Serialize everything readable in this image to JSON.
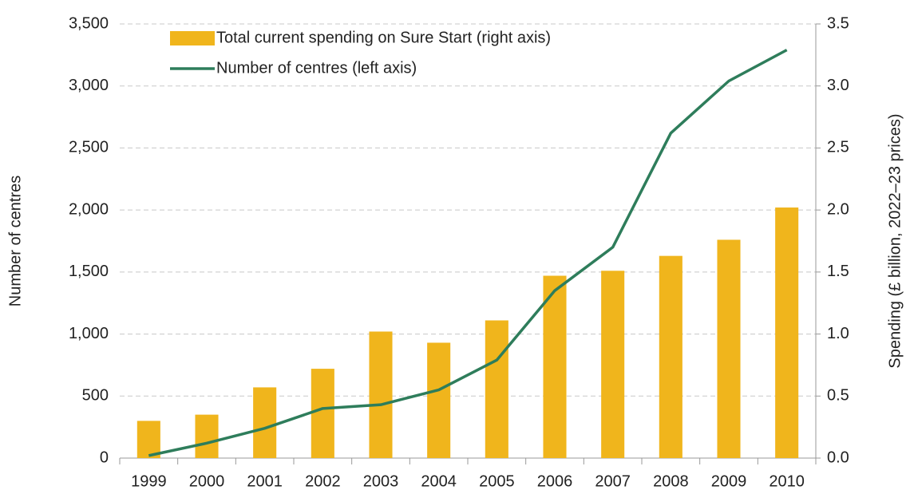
{
  "chart_data": {
    "type": "bar_line",
    "categories": [
      "1999",
      "2000",
      "2001",
      "2002",
      "2003",
      "2004",
      "2005",
      "2006",
      "2007",
      "2008",
      "2009",
      "2010"
    ],
    "series": [
      {
        "name": "Total current spending on Sure Start (right axis)",
        "type": "bar",
        "axis": "y2",
        "color": "#f0b51c",
        "values": [
          0.3,
          0.35,
          0.57,
          0.72,
          1.02,
          0.93,
          1.11,
          1.47,
          1.51,
          1.63,
          1.76,
          2.02
        ]
      },
      {
        "name": "Number of centres (left axis)",
        "type": "line",
        "axis": "y",
        "color": "#2e7d5b",
        "values": [
          20,
          120,
          240,
          400,
          430,
          550,
          790,
          1350,
          1700,
          2620,
          3040,
          3290
        ]
      }
    ],
    "ylabel": "Number of centres",
    "y2label": "Spending (£ billion, 2022–23 prices)",
    "ylim": [
      0,
      3500
    ],
    "yticks": [
      0,
      500,
      {
        "value": 1000,
        "label": "1,000"
      },
      {
        "value": 1500,
        "label": "1,500"
      },
      {
        "value": 2000,
        "label": "2,000"
      },
      {
        "value": 2500,
        "label": "2,500"
      },
      {
        "value": 3000,
        "label": "3,000"
      },
      {
        "value": 3500,
        "label": "3,500"
      }
    ],
    "y2lim": [
      0,
      3.5
    ],
    "y2ticks": [
      {
        "value": 0,
        "label": "0.0"
      },
      0.5,
      {
        "value": 1,
        "label": "1.0"
      },
      1.5,
      {
        "value": 2,
        "label": "2.0"
      },
      2.5,
      {
        "value": 3,
        "label": "3.0"
      },
      3.5
    ],
    "grid": true,
    "legend": "top-left"
  }
}
